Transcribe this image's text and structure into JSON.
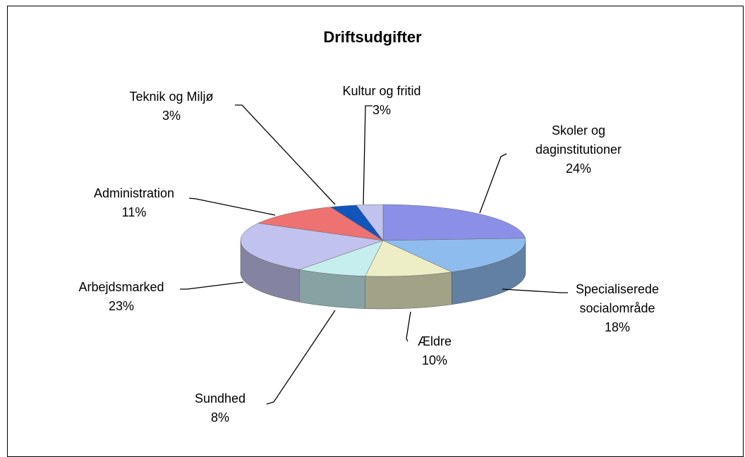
{
  "chart_data": {
    "type": "pie3d",
    "title": "Driftsudgifter",
    "categories": [
      "Skoler og daginstitutioner",
      "Specialiserede socialområde",
      "Ældre",
      "Sundhed",
      "Arbejdsmarked",
      "Administration",
      "Teknik og Miljø",
      "Kultur og fritid"
    ],
    "values": [
      24,
      18,
      10,
      8,
      23,
      11,
      3,
      3
    ],
    "value_labels": [
      "24%",
      "18%",
      "10%",
      "8%",
      "23%",
      "11%",
      "3%",
      "3%"
    ],
    "colors": [
      "#8c8fe8",
      "#8fbcee",
      "#eeeec6",
      "#c6eeee",
      "#c2c2ee",
      "#ee7272",
      "#1155bb",
      "#c2c2ee"
    ]
  }
}
